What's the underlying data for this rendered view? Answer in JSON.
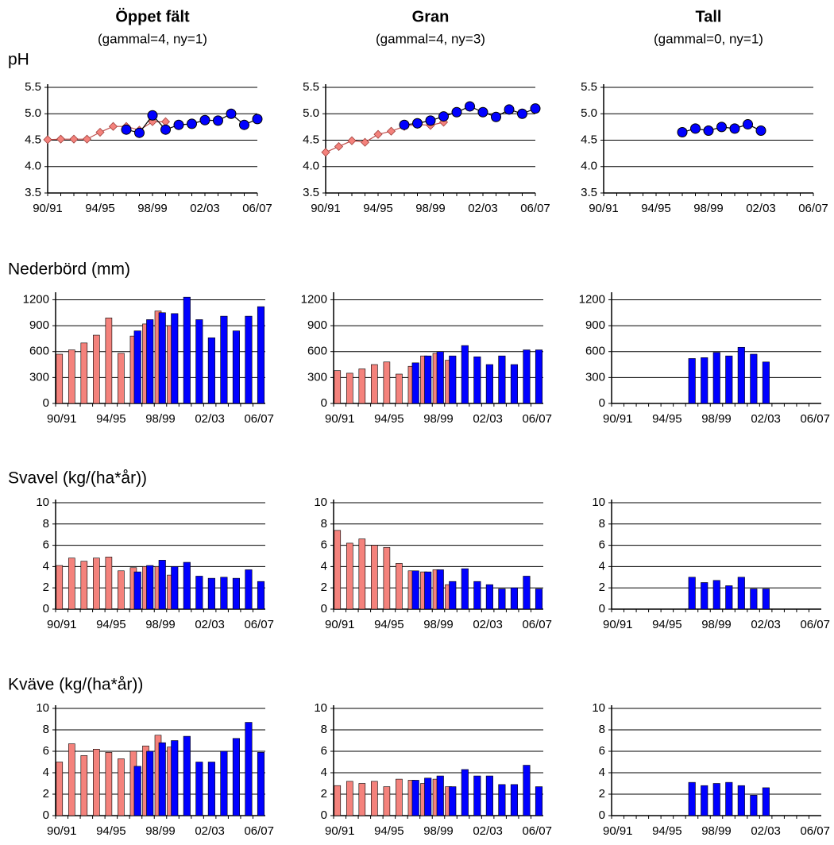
{
  "columns": [
    {
      "title": "Öppet fält",
      "subtitle": "(gammal=4, ny=1)"
    },
    {
      "title": "Gran",
      "subtitle": "(gammal=4, ny=3)"
    },
    {
      "title": "Tall",
      "subtitle": "(gammal=0, ny=1)"
    }
  ],
  "rows": [
    "pH",
    "Nederbörd (mm)",
    "Svavel (kg/(ha*år))",
    "Kväve (kg/(ha*år))"
  ],
  "chart_data": [
    {
      "type": "line",
      "categories": [
        "90/91",
        null,
        null,
        null,
        "94/95",
        null,
        null,
        null,
        "98/99",
        null,
        null,
        null,
        "02/03",
        null,
        null,
        null,
        "06/07"
      ],
      "ylim": [
        3.5,
        5.5
      ],
      "yticks": [
        3.5,
        {
          "value": 4,
          "label": "4.0"
        },
        4.5,
        {
          "value": 5,
          "label": "5.0"
        },
        5.5
      ],
      "grid": true,
      "series": [
        {
          "color": "#f4827c",
          "values": [
            4.51,
            4.52,
            4.52,
            4.52,
            4.65,
            4.76,
            4.76,
            4.69,
            4.85,
            4.85,
            null,
            null,
            null,
            null,
            null,
            null,
            null
          ]
        },
        {
          "color": "#0000ff",
          "values": [
            null,
            null,
            null,
            null,
            null,
            null,
            4.7,
            4.64,
            4.97,
            4.7,
            4.79,
            4.81,
            4.88,
            4.87,
            5.0,
            4.79,
            4.9
          ]
        }
      ]
    },
    {
      "type": "line",
      "categories": [
        "90/91",
        null,
        null,
        null,
        "94/95",
        null,
        null,
        null,
        "98/99",
        null,
        null,
        null,
        "02/03",
        null,
        null,
        null,
        "06/07"
      ],
      "ylim": [
        3.5,
        5.5
      ],
      "yticks": [
        3.5,
        {
          "value": 4,
          "label": "4.0"
        },
        4.5,
        {
          "value": 5,
          "label": "5.0"
        },
        5.5
      ],
      "grid": true,
      "series": [
        {
          "color": "#f4827c",
          "values": [
            4.27,
            4.38,
            4.49,
            4.46,
            4.61,
            4.67,
            4.76,
            4.8,
            4.78,
            4.84,
            null,
            null,
            null,
            null,
            null,
            null,
            null
          ]
        },
        {
          "color": "#0000ff",
          "values": [
            null,
            null,
            null,
            null,
            null,
            null,
            4.79,
            4.82,
            4.87,
            4.95,
            5.03,
            5.14,
            5.03,
            4.94,
            5.08,
            5.0,
            5.1
          ]
        }
      ]
    },
    {
      "type": "line",
      "categories": [
        "90/91",
        null,
        null,
        null,
        "94/95",
        null,
        null,
        null,
        "98/99",
        null,
        null,
        null,
        "02/03",
        null,
        null,
        null,
        "06/07"
      ],
      "ylim": [
        3.5,
        5.5
      ],
      "yticks": [
        3.5,
        {
          "value": 4,
          "label": "4.0"
        },
        4.5,
        {
          "value": 5,
          "label": "5.0"
        },
        5.5
      ],
      "grid": true,
      "series": [
        {
          "color": "#0000ff",
          "values": [
            null,
            null,
            null,
            null,
            null,
            null,
            4.65,
            4.72,
            4.68,
            4.75,
            4.72,
            4.8,
            4.68,
            null,
            null,
            null,
            null
          ]
        }
      ]
    },
    {
      "type": "bar",
      "categories": [
        "90/91",
        null,
        null,
        null,
        "94/95",
        null,
        null,
        null,
        "98/99",
        null,
        null,
        null,
        "02/03",
        null,
        null,
        null,
        "06/07"
      ],
      "ylim": [
        0,
        1250
      ],
      "yticks": [
        0,
        300,
        600,
        900,
        1200
      ],
      "grid": true,
      "series": [
        {
          "color": "#f4827c",
          "values": [
            570,
            620,
            700,
            790,
            990,
            580,
            780,
            920,
            1070,
            900,
            null,
            null,
            null,
            null,
            null,
            null,
            null
          ]
        },
        {
          "color": "#0000ff",
          "values": [
            null,
            null,
            null,
            null,
            null,
            null,
            840,
            970,
            1050,
            1040,
            1230,
            970,
            760,
            1010,
            840,
            1010,
            1120
          ]
        }
      ]
    },
    {
      "type": "bar",
      "categories": [
        "90/91",
        null,
        null,
        null,
        "94/95",
        null,
        null,
        null,
        "98/99",
        null,
        null,
        null,
        "02/03",
        null,
        null,
        null,
        "06/07"
      ],
      "ylim": [
        0,
        1250
      ],
      "yticks": [
        0,
        300,
        600,
        900,
        1200
      ],
      "grid": true,
      "series": [
        {
          "color": "#f4827c",
          "values": [
            380,
            350,
            400,
            450,
            480,
            340,
            430,
            550,
            580,
            500,
            null,
            null,
            null,
            null,
            null,
            null,
            null
          ]
        },
        {
          "color": "#0000ff",
          "values": [
            null,
            null,
            null,
            null,
            null,
            null,
            470,
            550,
            600,
            550,
            670,
            540,
            450,
            550,
            450,
            620,
            620
          ]
        }
      ]
    },
    {
      "type": "bar",
      "categories": [
        "90/91",
        null,
        null,
        null,
        "94/95",
        null,
        null,
        null,
        "98/99",
        null,
        null,
        null,
        "02/03",
        null,
        null,
        null,
        "06/07"
      ],
      "ylim": [
        0,
        1250
      ],
      "yticks": [
        0,
        300,
        600,
        900,
        1200
      ],
      "grid": true,
      "series": [
        {
          "color": "#0000ff",
          "values": [
            null,
            null,
            null,
            null,
            null,
            null,
            520,
            530,
            590,
            550,
            650,
            570,
            480,
            null,
            null,
            null,
            null
          ]
        }
      ]
    },
    {
      "type": "bar",
      "categories": [
        "90/91",
        null,
        null,
        null,
        "94/95",
        null,
        null,
        null,
        "98/99",
        null,
        null,
        null,
        "02/03",
        null,
        null,
        null,
        "06/07"
      ],
      "ylim": [
        0,
        10
      ],
      "yticks": [
        0,
        2,
        4,
        6,
        8,
        10
      ],
      "grid": true,
      "series": [
        {
          "color": "#f4827c",
          "values": [
            4.1,
            4.8,
            4.5,
            4.8,
            4.9,
            3.6,
            3.9,
            4.0,
            4.0,
            3.2,
            null,
            null,
            null,
            null,
            null,
            null,
            null
          ]
        },
        {
          "color": "#0000ff",
          "values": [
            null,
            null,
            null,
            null,
            null,
            null,
            3.5,
            4.1,
            4.6,
            4.0,
            4.4,
            3.1,
            2.9,
            3.0,
            2.9,
            3.7,
            2.6
          ]
        }
      ]
    },
    {
      "type": "bar",
      "categories": [
        "90/91",
        null,
        null,
        null,
        "94/95",
        null,
        null,
        null,
        "98/99",
        null,
        null,
        null,
        "02/03",
        null,
        null,
        null,
        "06/07"
      ],
      "ylim": [
        0,
        10
      ],
      "yticks": [
        0,
        2,
        4,
        6,
        8,
        10
      ],
      "grid": true,
      "series": [
        {
          "color": "#f4827c",
          "values": [
            7.4,
            6.2,
            6.6,
            6.0,
            5.8,
            4.3,
            3.6,
            3.5,
            3.7,
            2.3,
            null,
            null,
            null,
            null,
            null,
            null,
            null
          ]
        },
        {
          "color": "#0000ff",
          "values": [
            null,
            null,
            null,
            null,
            null,
            null,
            3.6,
            3.5,
            3.7,
            2.6,
            3.8,
            2.6,
            2.3,
            1.9,
            2.0,
            3.1,
            1.9
          ]
        }
      ]
    },
    {
      "type": "bar",
      "categories": [
        "90/91",
        null,
        null,
        null,
        "94/95",
        null,
        null,
        null,
        "98/99",
        null,
        null,
        null,
        "02/03",
        null,
        null,
        null,
        "06/07"
      ],
      "ylim": [
        0,
        10
      ],
      "yticks": [
        0,
        2,
        4,
        6,
        8,
        10
      ],
      "grid": true,
      "series": [
        {
          "color": "#0000ff",
          "values": [
            null,
            null,
            null,
            null,
            null,
            null,
            3.0,
            2.5,
            2.7,
            2.2,
            3.0,
            1.9,
            1.9,
            null,
            null,
            null,
            null
          ]
        }
      ]
    },
    {
      "type": "bar",
      "categories": [
        "90/91",
        null,
        null,
        null,
        "94/95",
        null,
        null,
        null,
        "98/99",
        null,
        null,
        null,
        "02/03",
        null,
        null,
        null,
        "06/07"
      ],
      "ylim": [
        0,
        10
      ],
      "yticks": [
        0,
        2,
        4,
        6,
        8,
        10
      ],
      "grid": true,
      "series": [
        {
          "color": "#f4827c",
          "values": [
            5.0,
            6.7,
            5.6,
            6.2,
            5.9,
            5.3,
            6.0,
            6.5,
            7.5,
            6.4,
            null,
            null,
            null,
            null,
            null,
            null,
            null
          ]
        },
        {
          "color": "#0000ff",
          "values": [
            null,
            null,
            null,
            null,
            null,
            null,
            4.6,
            6.0,
            6.8,
            7.0,
            7.4,
            5.0,
            5.0,
            6.0,
            7.2,
            8.7,
            5.9
          ]
        }
      ]
    },
    {
      "type": "bar",
      "categories": [
        "90/91",
        null,
        null,
        null,
        "94/95",
        null,
        null,
        null,
        "98/99",
        null,
        null,
        null,
        "02/03",
        null,
        null,
        null,
        "06/07"
      ],
      "ylim": [
        0,
        10
      ],
      "yticks": [
        0,
        2,
        4,
        6,
        8,
        10
      ],
      "grid": true,
      "series": [
        {
          "color": "#f4827c",
          "values": [
            2.8,
            3.2,
            3.0,
            3.2,
            2.7,
            3.4,
            3.3,
            3.0,
            3.4,
            2.7,
            null,
            null,
            null,
            null,
            null,
            null,
            null
          ]
        },
        {
          "color": "#0000ff",
          "values": [
            null,
            null,
            null,
            null,
            null,
            null,
            3.3,
            3.5,
            3.7,
            2.7,
            4.3,
            3.7,
            3.7,
            2.9,
            2.9,
            4.7,
            2.7
          ]
        }
      ]
    },
    {
      "type": "bar",
      "categories": [
        "90/91",
        null,
        null,
        null,
        "94/95",
        null,
        null,
        null,
        "98/99",
        null,
        null,
        null,
        "02/03",
        null,
        null,
        null,
        "06/07"
      ],
      "ylim": [
        0,
        10
      ],
      "yticks": [
        0,
        2,
        4,
        6,
        8,
        10
      ],
      "grid": true,
      "series": [
        {
          "color": "#0000ff",
          "values": [
            null,
            null,
            null,
            null,
            null,
            null,
            3.1,
            2.8,
            3.0,
            3.1,
            2.8,
            1.9,
            2.6,
            null,
            null,
            null,
            null
          ]
        }
      ]
    }
  ]
}
